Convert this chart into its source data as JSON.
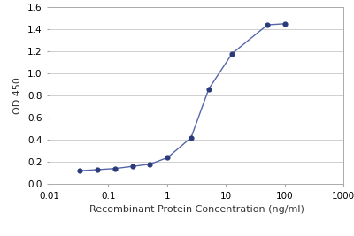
{
  "x_values": [
    0.032,
    0.064,
    0.128,
    0.256,
    0.512,
    1.024,
    2.56,
    5.12,
    12.8,
    51.2,
    102.4
  ],
  "y_values": [
    0.12,
    0.13,
    0.14,
    0.16,
    0.18,
    0.24,
    0.42,
    0.86,
    1.18,
    1.44,
    1.45
  ],
  "line_color": "#5566aa",
  "marker_color": "#2a3a7a",
  "xlabel": "Recombinant Protein Concentration (ng/ml)",
  "ylabel": "OD 450",
  "xlim": [
    0.01,
    1000
  ],
  "ylim": [
    0,
    1.6
  ],
  "yticks": [
    0,
    0.2,
    0.4,
    0.6,
    0.8,
    1.0,
    1.2,
    1.4,
    1.6
  ],
  "xtick_labels": [
    "0.01",
    "0.1",
    "1",
    "10",
    "100",
    "1000"
  ],
  "xtick_values": [
    0.01,
    0.1,
    1,
    10,
    100,
    1000
  ],
  "background_color": "#ffffff",
  "grid_color": "#c8c8c8",
  "font_color": "#333333",
  "xlabel_fontsize": 8,
  "ylabel_fontsize": 8,
  "tick_fontsize": 7.5
}
